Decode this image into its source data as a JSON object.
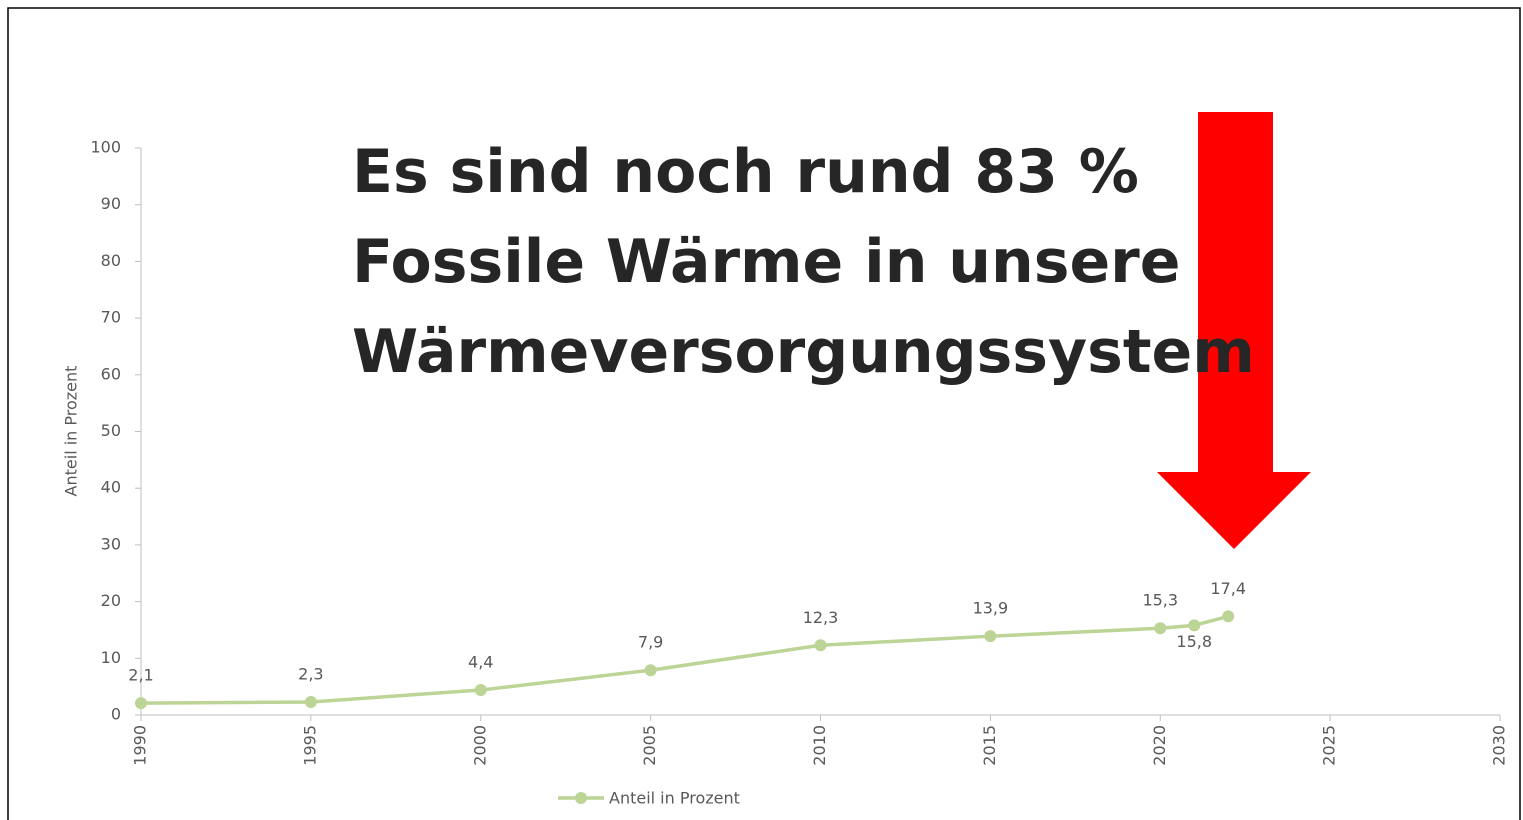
{
  "chart_data": {
    "type": "line",
    "annotation": [
      "Es sind noch rund 83 %",
      "Fossile Wärme in unsere",
      "Wärmeversorgungssystem"
    ],
    "y_label": "Anteil in Prozent",
    "x": [
      1990,
      1995,
      2000,
      2005,
      2010,
      2015,
      2020,
      2021,
      2022
    ],
    "series": [
      {
        "name": "Anteil in Prozent",
        "color": "#bcd495",
        "values": [
          2.1,
          2.3,
          4.4,
          7.9,
          12.3,
          13.9,
          15.3,
          15.8,
          17.4
        ],
        "value_labels": [
          "2,1",
          "2,3",
          "4,4",
          "7,9",
          "12,3",
          "13,9",
          "15,3",
          "15,8",
          "17,4"
        ]
      }
    ],
    "xlim": [
      1990,
      2030
    ],
    "xticks": [
      1990,
      1995,
      2000,
      2005,
      2010,
      2015,
      2020,
      2025,
      2030
    ],
    "ylim": [
      0,
      100
    ],
    "yticks": [
      0,
      10,
      20,
      30,
      40,
      50,
      60,
      70,
      80,
      90,
      100
    ],
    "grid": false,
    "legend": "bottom"
  }
}
